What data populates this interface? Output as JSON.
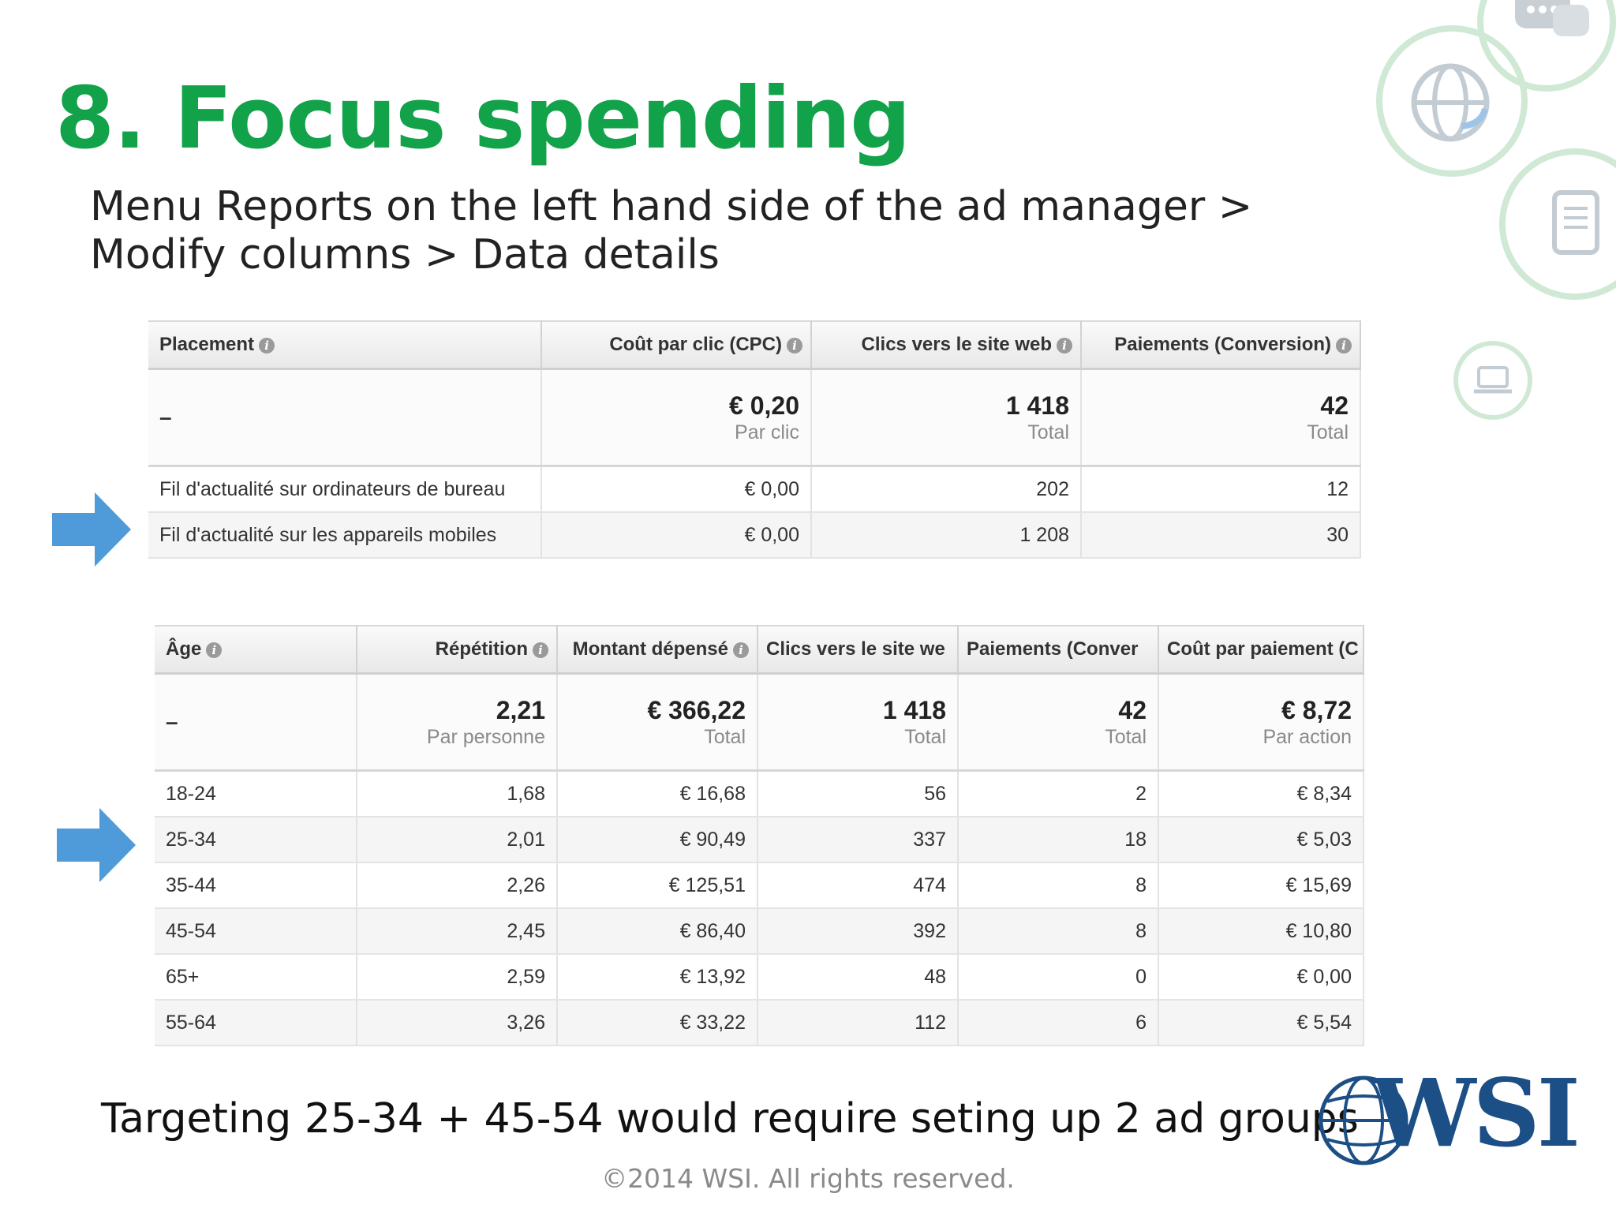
{
  "slide": {
    "title": "8. Focus spending",
    "subtitle": "Menu Reports on the left hand side of the ad manager > Modify columns > Data details",
    "bottom_note": "Targeting 25-34 + 45-54 would require seting up 2 ad groups",
    "copyright": "©2014 WSI. All rights reserved.",
    "logo_text": "WSI",
    "accent_color": "#12a24a",
    "arrow_color": "#4f9bd9"
  },
  "placement_table": {
    "headers": [
      "Placement",
      "Coût par clic (CPC)",
      "Clics vers le site web",
      "Paiements (Conversion)"
    ],
    "summary": [
      {
        "value": "–",
        "label": ""
      },
      {
        "value": "€ 0,20",
        "label": "Par clic"
      },
      {
        "value": "1 418",
        "label": "Total"
      },
      {
        "value": "42",
        "label": "Total"
      }
    ],
    "rows": [
      [
        "Fil d'actualité sur ordinateurs de bureau",
        "€ 0,00",
        "202",
        "12"
      ],
      [
        "Fil d'actualité sur les appareils mobiles",
        "€ 0,00",
        "1 208",
        "30"
      ]
    ]
  },
  "age_table": {
    "headers": [
      "Âge",
      "Répétition",
      "Montant dépensé",
      "Clics vers le site we",
      "Paiements (Conver",
      "Coût par paiement (C"
    ],
    "summary": [
      {
        "value": "–",
        "label": ""
      },
      {
        "value": "2,21",
        "label": "Par personne"
      },
      {
        "value": "€ 366,22",
        "label": "Total"
      },
      {
        "value": "1 418",
        "label": "Total"
      },
      {
        "value": "42",
        "label": "Total"
      },
      {
        "value": "€ 8,72",
        "label": "Par action"
      }
    ],
    "rows": [
      [
        "18-24",
        "1,68",
        "€ 16,68",
        "56",
        "2",
        "€ 8,34"
      ],
      [
        "25-34",
        "2,01",
        "€ 90,49",
        "337",
        "18",
        "€ 5,03"
      ],
      [
        "35-44",
        "2,26",
        "€ 125,51",
        "474",
        "8",
        "€ 15,69"
      ],
      [
        "45-54",
        "2,45",
        "€ 86,40",
        "392",
        "8",
        "€ 10,80"
      ],
      [
        "65+",
        "2,59",
        "€ 13,92",
        "48",
        "0",
        "€ 0,00"
      ],
      [
        "55-64",
        "3,26",
        "€ 33,22",
        "112",
        "6",
        "€ 5,54"
      ]
    ]
  }
}
